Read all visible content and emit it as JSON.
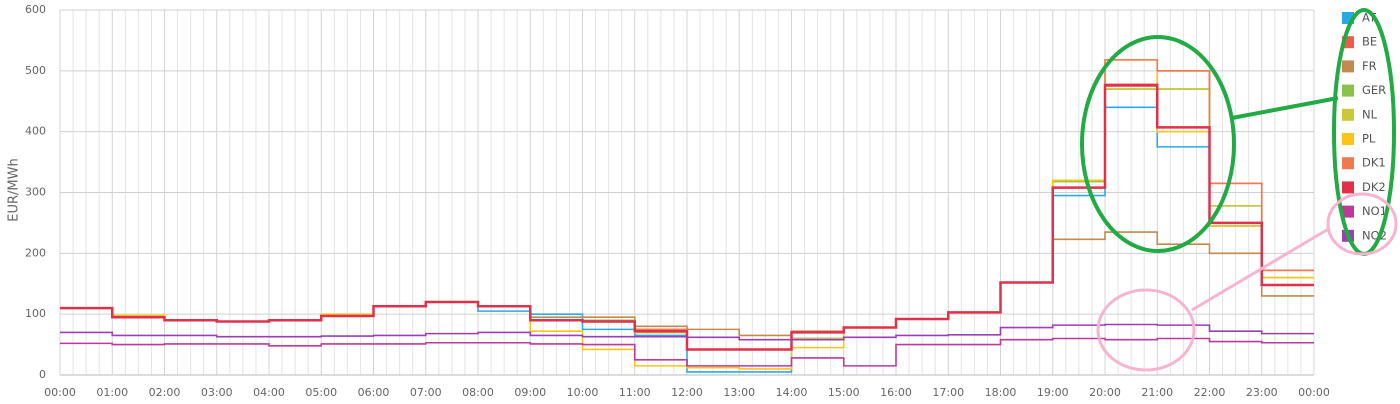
{
  "chart_data": {
    "type": "step-line",
    "y_label": "EUR/MWh",
    "categories": [
      "00:00",
      "01:00",
      "02:00",
      "03:00",
      "04:00",
      "05:00",
      "06:00",
      "07:00",
      "08:00",
      "09:00",
      "10:00",
      "11:00",
      "12:00",
      "13:00",
      "14:00",
      "15:00",
      "16:00",
      "17:00",
      "18:00",
      "19:00",
      "20:00",
      "21:00",
      "22:00",
      "23:00",
      "00:00"
    ],
    "ylim": [
      0,
      600
    ],
    "yticks": [
      0,
      100,
      200,
      300,
      400,
      500,
      600
    ],
    "grid": true,
    "legend": "right",
    "series": [
      {
        "name": "AT",
        "color": "#29abe2",
        "values": [
          110,
          95,
          90,
          88,
          90,
          97,
          113,
          120,
          105,
          100,
          75,
          65,
          5,
          5,
          60,
          78,
          92,
          103,
          152,
          295,
          440,
          375,
          245,
          148,
          148
        ]
      },
      {
        "name": "BE",
        "color": "#f05a4a",
        "values": [
          110,
          95,
          90,
          88,
          90,
          97,
          113,
          120,
          113,
          90,
          90,
          75,
          42,
          42,
          70,
          78,
          92,
          103,
          152,
          308,
          475,
          500,
          315,
          172,
          172
        ]
      },
      {
        "name": "FR",
        "color": "#c08a50",
        "values": [
          110,
          95,
          90,
          88,
          90,
          97,
          113,
          120,
          113,
          95,
          95,
          80,
          75,
          65,
          72,
          78,
          92,
          103,
          152,
          223,
          235,
          215,
          200,
          130,
          130
        ]
      },
      {
        "name": "GER",
        "color": "#8bc34a",
        "values": [
          110,
          95,
          90,
          88,
          90,
          97,
          113,
          120,
          113,
          90,
          90,
          70,
          42,
          42,
          60,
          78,
          92,
          103,
          152,
          318,
          470,
          470,
          278,
          160,
          160
        ]
      },
      {
        "name": "NL",
        "color": "#c8c83a",
        "values": [
          110,
          95,
          90,
          88,
          90,
          97,
          113,
          120,
          113,
          90,
          88,
          70,
          42,
          42,
          60,
          78,
          92,
          103,
          152,
          320,
          470,
          470,
          278,
          160,
          160
        ]
      },
      {
        "name": "PL",
        "color": "#fcc419",
        "values": [
          110,
          98,
          90,
          88,
          90,
          100,
          113,
          120,
          113,
          72,
          42,
          15,
          12,
          10,
          45,
          78,
          92,
          103,
          152,
          320,
          518,
          400,
          245,
          160,
          160
        ]
      },
      {
        "name": "DK1",
        "color": "#f07a50",
        "values": [
          110,
          95,
          90,
          88,
          90,
          97,
          113,
          120,
          113,
          90,
          88,
          75,
          42,
          42,
          70,
          78,
          92,
          103,
          152,
          308,
          518,
          500,
          315,
          172,
          172
        ]
      },
      {
        "name": "DK2",
        "color": "#e0304a",
        "values": [
          110,
          95,
          90,
          88,
          90,
          97,
          113,
          120,
          113,
          90,
          88,
          72,
          42,
          42,
          70,
          78,
          92,
          103,
          152,
          308,
          477,
          407,
          250,
          148,
          148
        ]
      },
      {
        "name": "NO1",
        "color": "#c0399a",
        "values": [
          52,
          50,
          51,
          51,
          48,
          51,
          51,
          53,
          53,
          51,
          50,
          25,
          15,
          15,
          28,
          15,
          50,
          50,
          58,
          60,
          58,
          60,
          55,
          53,
          53
        ]
      },
      {
        "name": "NO2",
        "color": "#9b3fb5",
        "values": [
          70,
          65,
          65,
          63,
          63,
          64,
          65,
          68,
          70,
          65,
          63,
          63,
          62,
          58,
          58,
          62,
          65,
          66,
          78,
          82,
          83,
          82,
          72,
          68,
          68
        ]
      }
    ]
  }
}
